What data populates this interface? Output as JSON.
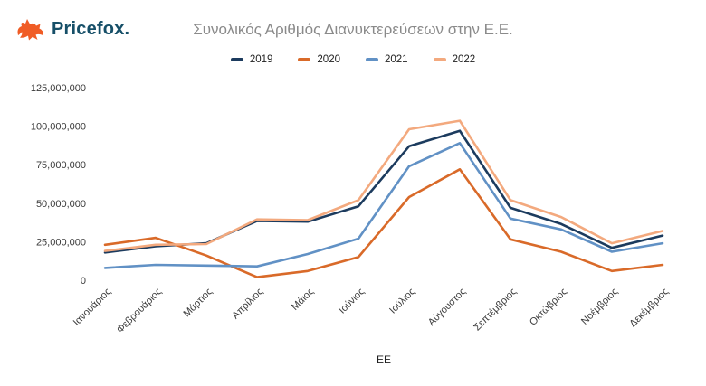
{
  "header": {
    "logo_text": "Pricefox.",
    "title": "Συνολικός Αριθμός Διανυκτερεύσεων στην Ε.Ε."
  },
  "colors": {
    "logo_fox_orange": "#f05c25",
    "logo_text_dark": "#164f68",
    "title_gray": "#8a8a8a",
    "axis_text": "#3a3a3a"
  },
  "chart_data": {
    "type": "line",
    "title": "Συνολικός Αριθμός Διανυκτερεύσεων στην Ε.Ε.",
    "xlabel": "ΕΕ",
    "ylabel": "",
    "ylim": [
      0,
      125000000
    ],
    "yticks": [
      0,
      25000000,
      50000000,
      75000000,
      100000000,
      125000000
    ],
    "ytick_labels": [
      "0",
      "25,000,000",
      "50,000,000",
      "75,000,000",
      "100,000,000",
      "125,000,000"
    ],
    "grid": false,
    "legend_position": "top",
    "categories": [
      "Ιανουάριος",
      "Φεβρουάριος",
      "Μάρτιος",
      "Απρίλιος",
      "Μάιος",
      "Ιούνιος",
      "Ιούλιος",
      "Αύγουστος",
      "Σεπτέμβριος",
      "Οκτώβριος",
      "Νοέμβριος",
      "Δεκέμβριος"
    ],
    "series": [
      {
        "name": "2019",
        "color": "#1c3b5e",
        "values": [
          18000000,
          22000000,
          24000000,
          38500000,
          38000000,
          48000000,
          87000000,
          97000000,
          47000000,
          36500000,
          21000000,
          29000000
        ]
      },
      {
        "name": "2020",
        "color": "#d96a29",
        "values": [
          23000000,
          27500000,
          16000000,
          2000000,
          6000000,
          15000000,
          54000000,
          72000000,
          26500000,
          18500000,
          6000000,
          10000000
        ]
      },
      {
        "name": "2021",
        "color": "#6191c5",
        "values": [
          8000000,
          10000000,
          9500000,
          9000000,
          17000000,
          27000000,
          74000000,
          89000000,
          40000000,
          33000000,
          18500000,
          24000000
        ]
      },
      {
        "name": "2022",
        "color": "#f3a97e",
        "values": [
          19000000,
          23000000,
          23500000,
          39500000,
          39000000,
          52000000,
          98000000,
          103500000,
          52000000,
          41000000,
          24000000,
          32000000
        ]
      }
    ]
  }
}
